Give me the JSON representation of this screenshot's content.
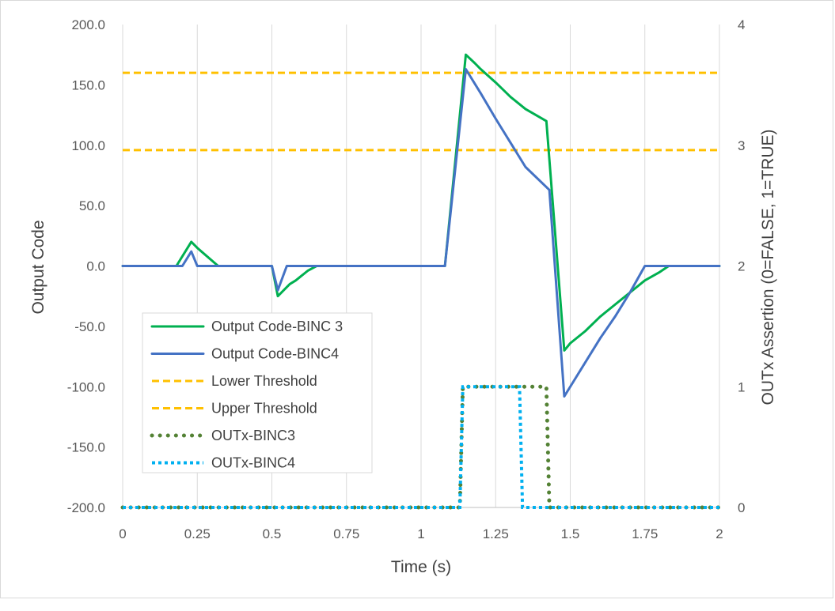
{
  "chart_data": {
    "type": "line",
    "xlabel": "Time (s)",
    "ylabel": "Output Code",
    "y2label": "OUTx Assertion (0=FALSE, 1=TRUE)",
    "xlim": [
      0,
      2
    ],
    "ylim": [
      -200,
      200
    ],
    "y2lim": [
      0,
      4
    ],
    "xticks": [
      "0",
      "0.25",
      "0.5",
      "0.75",
      "1",
      "1.25",
      "1.5",
      "1.75",
      "2"
    ],
    "yticks": [
      "200.0",
      "150.0",
      "100.0",
      "50.0",
      "0.0",
      "-50.0",
      "-100.0",
      "-150.0",
      "-200.0"
    ],
    "y2ticks": [
      "4",
      "3",
      "2",
      "1",
      "0"
    ],
    "grid": "vertical",
    "legend_position": "lower-left",
    "series": [
      {
        "name": "Output Code-BINC 3",
        "axis": "left",
        "color": "#00b050",
        "style": "solid",
        "x": [
          0,
          0.18,
          0.23,
          0.25,
          0.32,
          0.5,
          0.52,
          0.54,
          0.56,
          0.58,
          0.6,
          0.62,
          0.65,
          1.08,
          1.15,
          1.18,
          1.2,
          1.25,
          1.3,
          1.35,
          1.42,
          1.48,
          1.5,
          1.55,
          1.6,
          1.65,
          1.7,
          1.75,
          1.8,
          1.83,
          2.0
        ],
        "y": [
          0,
          0,
          20,
          15,
          0,
          0,
          -25,
          -20,
          -15,
          -12,
          -8,
          -4,
          0,
          0,
          175,
          168,
          163,
          152,
          140,
          130,
          120,
          -70,
          -64,
          -54,
          -42,
          -32,
          -22,
          -12,
          -5,
          0,
          0
        ]
      },
      {
        "name": "Output Code-BINC4",
        "axis": "left",
        "color": "#4472c4",
        "style": "solid",
        "x": [
          0,
          0.2,
          0.23,
          0.25,
          0.5,
          0.52,
          0.55,
          1.08,
          1.15,
          1.2,
          1.25,
          1.3,
          1.35,
          1.43,
          1.48,
          1.5,
          1.55,
          1.6,
          1.65,
          1.7,
          1.75,
          2.0
        ],
        "y": [
          0,
          0,
          12,
          0,
          0,
          -20,
          0,
          0,
          163,
          143,
          122,
          102,
          82,
          63,
          -108,
          -100,
          -80,
          -60,
          -42,
          -22,
          0,
          0
        ]
      },
      {
        "name": "Lower Threshold",
        "axis": "left",
        "color": "#ffc000",
        "style": "dashed",
        "x": [
          0,
          2
        ],
        "y": [
          96,
          96
        ]
      },
      {
        "name": "Upper Threshold",
        "axis": "left",
        "color": "#ffc000",
        "style": "dashed",
        "x": [
          0,
          2
        ],
        "y": [
          160,
          160
        ]
      },
      {
        "name": "OUTx-BINC3",
        "axis": "right",
        "color": "#548235",
        "style": "dotted-round",
        "x": [
          0,
          1.13,
          1.14,
          1.42,
          1.43,
          2.0
        ],
        "y": [
          0,
          0,
          1,
          1,
          0,
          0
        ]
      },
      {
        "name": "OUTx-BINC4",
        "axis": "right",
        "color": "#00b0f0",
        "style": "dotted-square",
        "x": [
          0,
          1.13,
          1.14,
          1.33,
          1.34,
          2.0
        ],
        "y": [
          0,
          0,
          1,
          1,
          0,
          0
        ]
      }
    ]
  }
}
